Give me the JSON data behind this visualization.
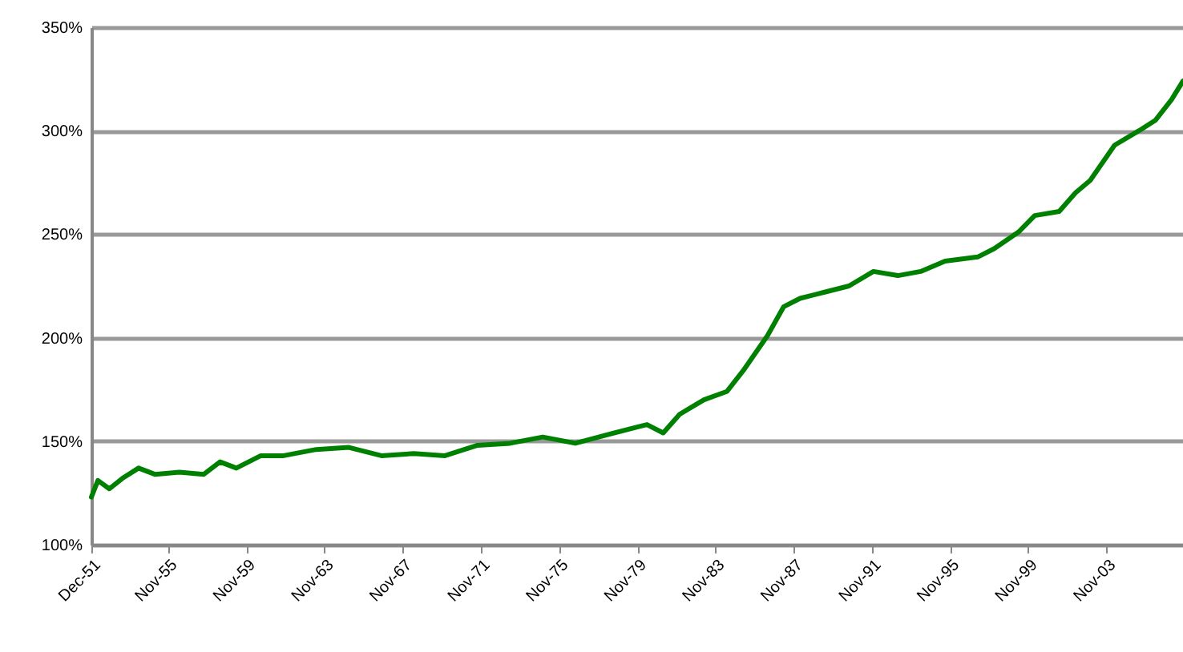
{
  "chart_data": {
    "type": "line",
    "x": [
      "1951-12",
      "1952-04",
      "1952-11",
      "1953-07",
      "1954-05",
      "1955-03",
      "1956-06",
      "1957-09",
      "1958-07",
      "1959-05",
      "1960-08",
      "1961-10",
      "1963-06",
      "1965-02",
      "1966-10",
      "1968-06",
      "1970-01",
      "1971-09",
      "1973-05",
      "1975-01",
      "1976-09",
      "1978-04",
      "1979-12",
      "1980-05",
      "1981-03",
      "1982-01",
      "1983-04",
      "1984-06",
      "1985-04",
      "1986-07",
      "1987-05",
      "1988-03",
      "1989-06",
      "1990-09",
      "1991-12",
      "1993-03",
      "1994-05",
      "1995-08",
      "1997-04",
      "1998-02",
      "1999-05",
      "2000-03",
      "2001-06",
      "2002-04",
      "2003-01",
      "2004-04",
      "2005-07",
      "2006-05",
      "2007-03",
      "2007-10"
    ],
    "series": [
      {
        "color": "#008000",
        "values": [
          123,
          131,
          127,
          132,
          137,
          134,
          135,
          134,
          140,
          137,
          143,
          143,
          146,
          147,
          143,
          144,
          143,
          148,
          149,
          152,
          149,
          153,
          157,
          158,
          154,
          163,
          170,
          174,
          184,
          201,
          215,
          219,
          222,
          225,
          232,
          230,
          232,
          237,
          239,
          243,
          251,
          259,
          261,
          270,
          276,
          293,
          300,
          305,
          315,
          324
        ]
      }
    ],
    "xlim": [
      "1951-12",
      "2007-10"
    ],
    "xticks": [
      {
        "value": "1951-12",
        "label": "Dec-51"
      },
      {
        "value": "1955-11",
        "label": "Nov-55"
      },
      {
        "value": "1959-11",
        "label": "Nov-59"
      },
      {
        "value": "1963-11",
        "label": "Nov-63"
      },
      {
        "value": "1967-11",
        "label": "Nov-67"
      },
      {
        "value": "1971-11",
        "label": "Nov-71"
      },
      {
        "value": "1975-11",
        "label": "Nov-75"
      },
      {
        "value": "1979-11",
        "label": "Nov-79"
      },
      {
        "value": "1983-11",
        "label": "Nov-83"
      },
      {
        "value": "1987-11",
        "label": "Nov-87"
      },
      {
        "value": "1991-11",
        "label": "Nov-91"
      },
      {
        "value": "1995-11",
        "label": "Nov-95"
      },
      {
        "value": "1999-11",
        "label": "Nov-99"
      },
      {
        "value": "2003-11",
        "label": "Nov-03"
      }
    ],
    "ylim": [
      100,
      350
    ],
    "yticks": [
      {
        "value": 100,
        "label": "100%"
      },
      {
        "value": 150,
        "label": "150%"
      },
      {
        "value": 200,
        "label": "200%"
      },
      {
        "value": 250,
        "label": "250%"
      },
      {
        "value": 300,
        "label": "300%"
      },
      {
        "value": 350,
        "label": "350%"
      }
    ],
    "grid": "y",
    "marker": "none",
    "line_style": "solid"
  }
}
